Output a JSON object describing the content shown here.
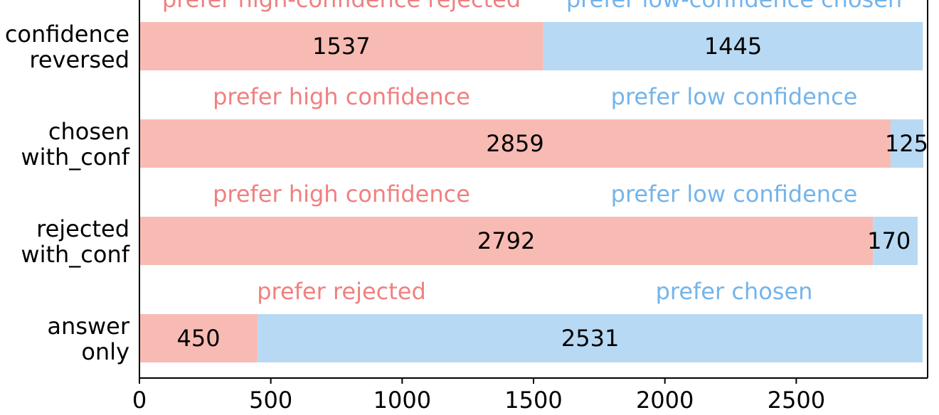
{
  "colors": {
    "left_bar": "#f8bbb4",
    "right_bar": "#b8d9f3",
    "left_text": "#f08080",
    "right_text": "#74b4ea",
    "axis": "#000000",
    "value_text": "#000000"
  },
  "chart_data": {
    "type": "bar",
    "orientation": "horizontal",
    "stacked": true,
    "xlim": [
      0,
      3000
    ],
    "xticks": [
      "0",
      "500",
      "1000",
      "1500",
      "2000",
      "2500"
    ],
    "grid": false,
    "categories": [
      {
        "label_lines": [
          "confidence",
          "reversed"
        ],
        "left_value": 1537,
        "right_value": 1445,
        "left_label": "prefer high-confidence rejected",
        "right_label": "prefer low-confidence chosen"
      },
      {
        "label_lines": [
          "chosen",
          "with_conf"
        ],
        "left_value": 2859,
        "right_value": 125,
        "left_label": "prefer high confidence",
        "right_label": "prefer low confidence"
      },
      {
        "label_lines": [
          "rejected",
          "with_conf"
        ],
        "left_value": 2792,
        "right_value": 170,
        "left_label": "prefer high confidence",
        "right_label": "prefer low confidence"
      },
      {
        "label_lines": [
          "answer",
          "only"
        ],
        "left_value": 450,
        "right_value": 2531,
        "left_label": "prefer rejected",
        "right_label": "prefer chosen"
      }
    ]
  }
}
